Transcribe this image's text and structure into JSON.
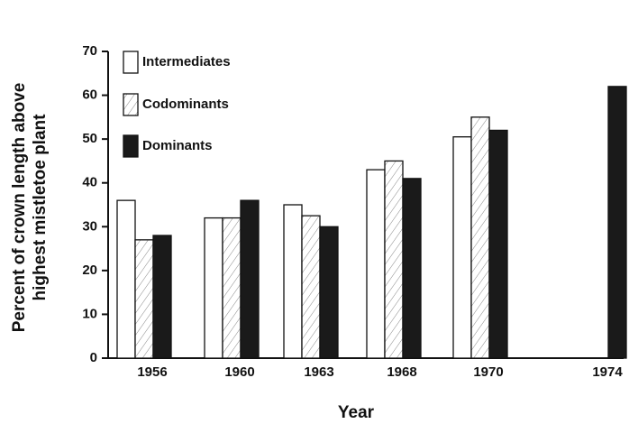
{
  "chart_data": {
    "type": "bar",
    "y_label": [
      "Percent of crown length above",
      "highest mistletoe plant"
    ],
    "x_label": "Year",
    "categories": [
      "1956",
      "1960",
      "1963",
      "1968",
      "1970",
      "1974"
    ],
    "series": [
      {
        "name": "Intermediates",
        "color": "#ffffff",
        "values": [
          36,
          32,
          35,
          43,
          50.5,
          null
        ]
      },
      {
        "name": "Codominants",
        "color": "hatch",
        "values": [
          27,
          32,
          32.5,
          45,
          55,
          null
        ]
      },
      {
        "name": "Dominants",
        "color": "#1a1a1a",
        "values": [
          28,
          36,
          30,
          41,
          52,
          62
        ]
      }
    ],
    "ylim": [
      0,
      70
    ],
    "yticks": [
      0,
      10,
      20,
      30,
      40,
      50,
      60,
      70
    ]
  }
}
